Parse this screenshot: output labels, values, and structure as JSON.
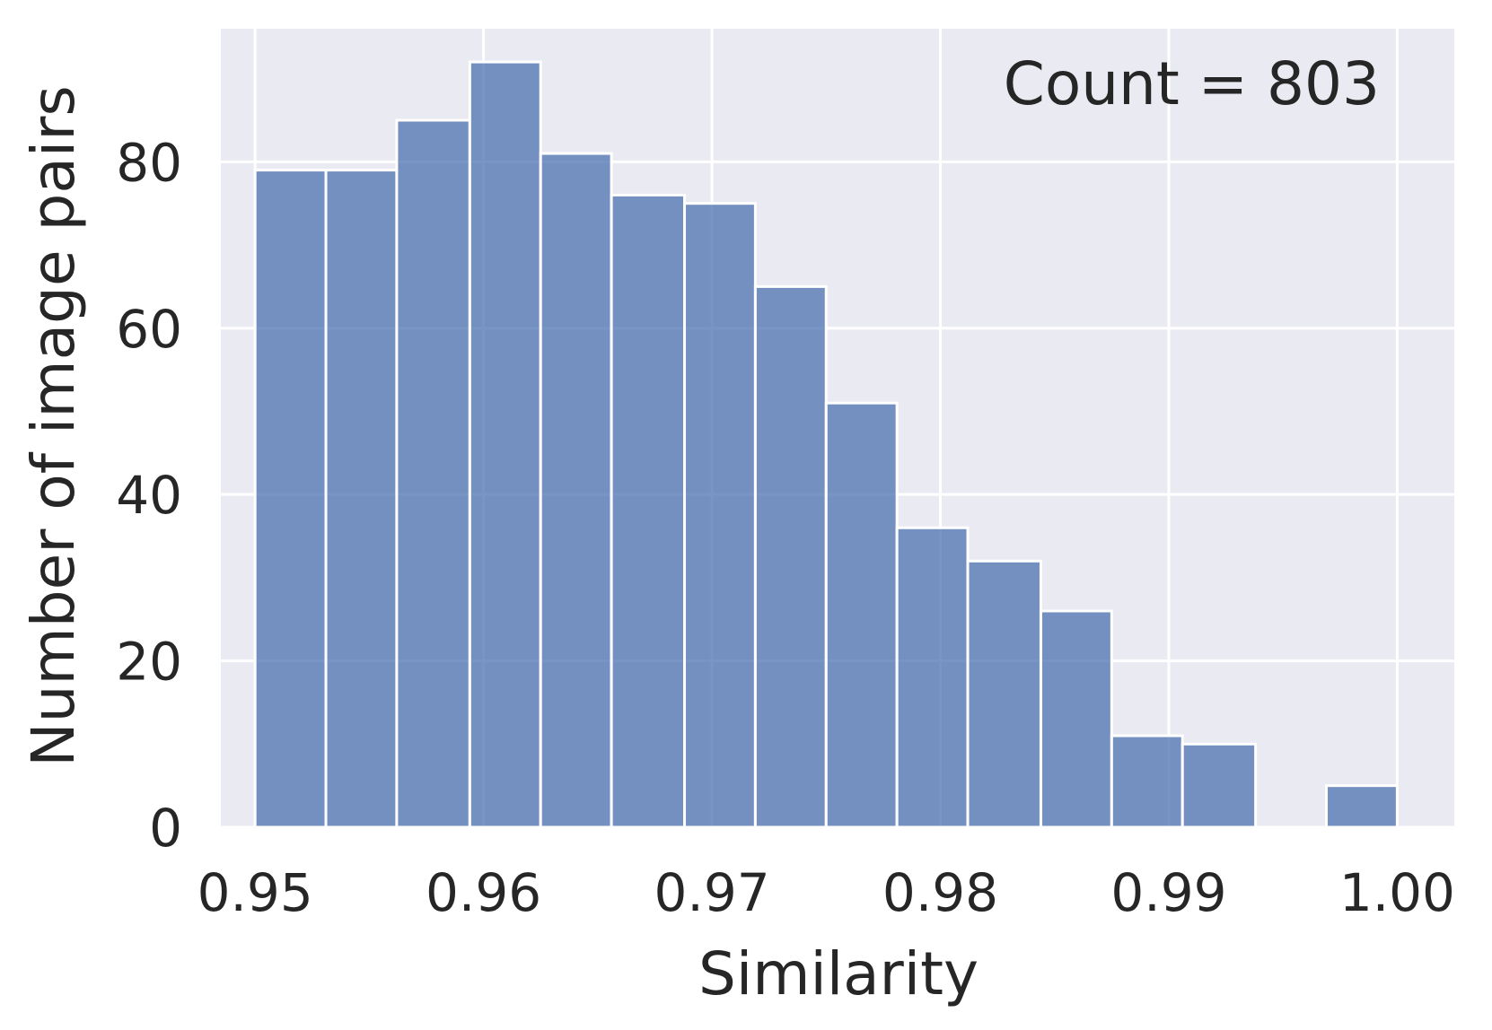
{
  "chart_data": {
    "type": "bar",
    "chart_kind": "histogram",
    "xlabel": "Similarity",
    "ylabel": "Number of image pairs",
    "annotation": "Count = 803",
    "xlim": [
      0.9485,
      1.0025
    ],
    "ylim": [
      0,
      96
    ],
    "xticks": [
      0.95,
      0.96,
      0.97,
      0.98,
      0.99,
      1.0
    ],
    "xtick_labels": [
      "0.95",
      "0.96",
      "0.97",
      "0.98",
      "0.99",
      "1.00"
    ],
    "yticks": [
      0,
      20,
      40,
      60,
      80
    ],
    "ytick_labels": [
      "0",
      "20",
      "40",
      "60",
      "80"
    ],
    "grid": true,
    "bins": [
      {
        "start": 0.95,
        "end": 0.9531,
        "count": 79
      },
      {
        "start": 0.9531,
        "end": 0.9562,
        "count": 79
      },
      {
        "start": 0.9562,
        "end": 0.9594,
        "count": 85
      },
      {
        "start": 0.9594,
        "end": 0.9625,
        "count": 92
      },
      {
        "start": 0.9625,
        "end": 0.9656,
        "count": 81
      },
      {
        "start": 0.9656,
        "end": 0.9688,
        "count": 76
      },
      {
        "start": 0.9688,
        "end": 0.9719,
        "count": 75
      },
      {
        "start": 0.9719,
        "end": 0.975,
        "count": 65
      },
      {
        "start": 0.975,
        "end": 0.9781,
        "count": 51
      },
      {
        "start": 0.9781,
        "end": 0.9812,
        "count": 36
      },
      {
        "start": 0.9812,
        "end": 0.9844,
        "count": 32
      },
      {
        "start": 0.9844,
        "end": 0.9875,
        "count": 26
      },
      {
        "start": 0.9875,
        "end": 0.9906,
        "count": 11
      },
      {
        "start": 0.9906,
        "end": 0.9938,
        "count": 10
      },
      {
        "start": 0.9938,
        "end": 0.9969,
        "count": 0
      },
      {
        "start": 0.9969,
        "end": 1.0,
        "count": 5
      }
    ],
    "colors": {
      "bar": "#4c72b0",
      "background": "#eaeaf2",
      "grid": "#ffffff",
      "text": "#262626"
    }
  }
}
